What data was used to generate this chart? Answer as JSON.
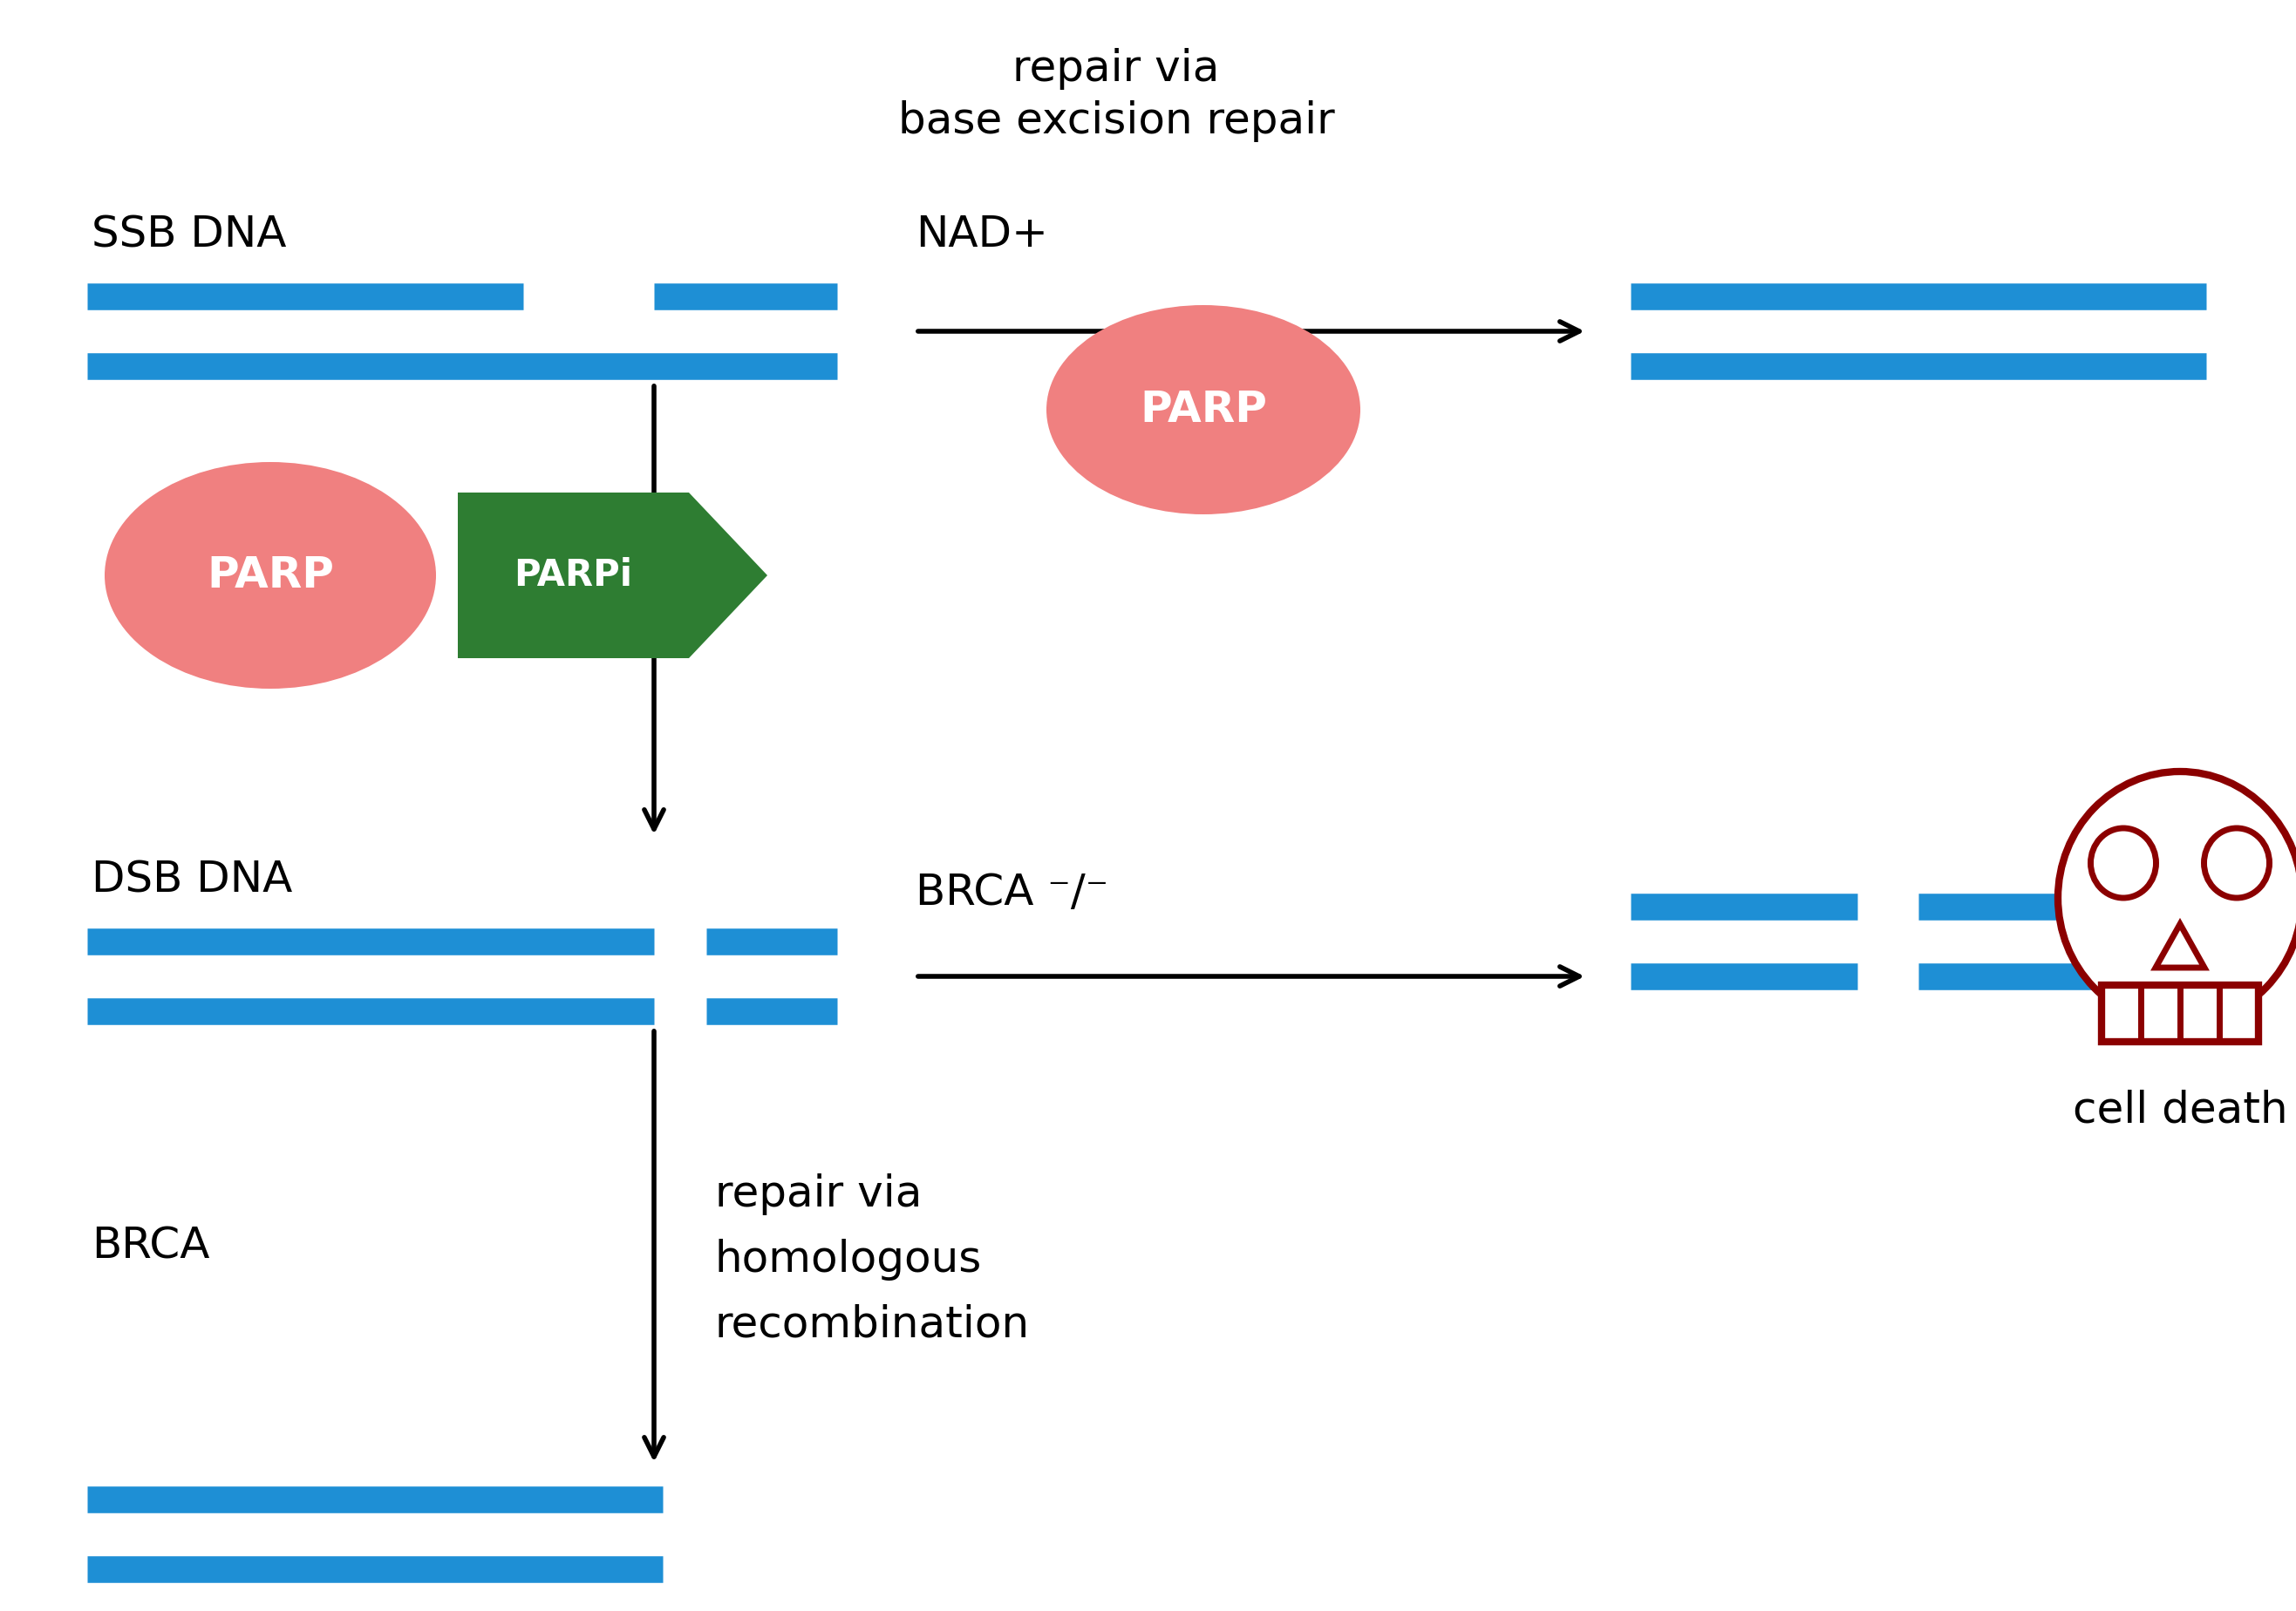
{
  "bg_color": "#ffffff",
  "dna_color": "#1E8FD5",
  "parp_color": "#F08080",
  "parpi_color": "#2E7D32",
  "skull_color": "#8B0000",
  "text_color": "#000000",
  "font_size_label": 36,
  "font_size_small": 30,
  "ssb_label": "SSB DNA",
  "nad_label": "NAD+",
  "dsb_label": "DSB DNA",
  "brca_label": "BRCA",
  "brca_neg_label": "BRCA ⁻/⁻",
  "cell_death_label": "cell death",
  "parp_label": "PARP",
  "parpi_label": "PARPi",
  "repair_ber_line1": "repair via",
  "repair_ber_line2": "base excision repair",
  "repair_hr_line1": "repair via",
  "repair_hr_line2": "homologous",
  "repair_hr_line3": "recombination",
  "dna_lw": 22
}
